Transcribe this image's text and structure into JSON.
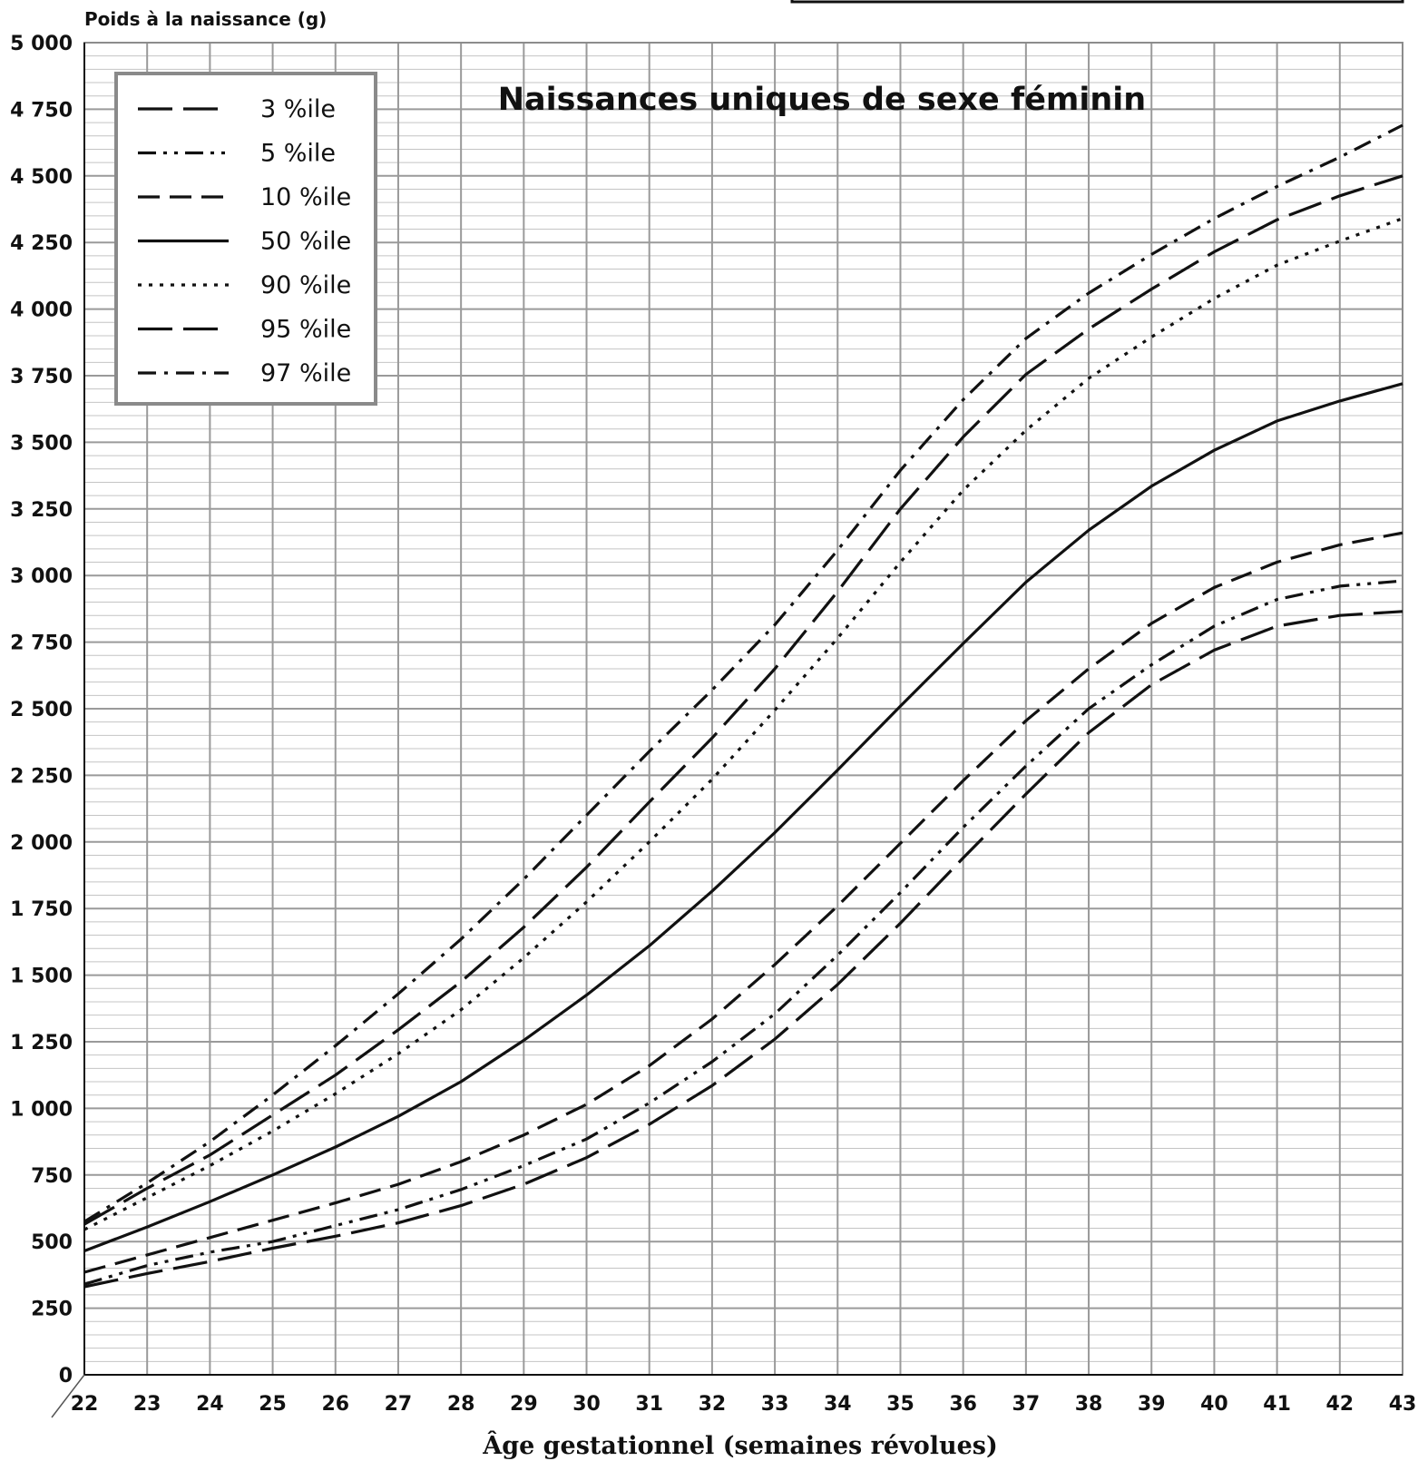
{
  "chart_data": {
    "type": "line",
    "title": "Naissances uniques de sexe féminin",
    "ylabel": "Poids à la naissance (g)",
    "xlabel": "Âge gestationnel (semaines révolues)",
    "xlim": [
      22,
      43
    ],
    "ylim": [
      0,
      5000
    ],
    "x_ticks": [
      22,
      23,
      24,
      25,
      26,
      27,
      28,
      29,
      30,
      31,
      32,
      33,
      34,
      35,
      36,
      37,
      38,
      39,
      40,
      41,
      42,
      43
    ],
    "x_tick_labels": [
      "22",
      "23",
      "24",
      "25",
      "26",
      "27",
      "28",
      "29",
      "30",
      "31",
      "32",
      "33",
      "34",
      "35",
      "36",
      "37",
      "38",
      "39",
      "40",
      "41",
      "42",
      "43"
    ],
    "y_ticks": [
      0,
      250,
      500,
      750,
      1000,
      1250,
      1500,
      1750,
      2000,
      2250,
      2500,
      2750,
      3000,
      3250,
      3500,
      3750,
      4000,
      4250,
      4500,
      4750,
      5000
    ],
    "y_tick_labels": [
      "0",
      "250",
      "500",
      "750",
      "1 000",
      "1 250",
      "1 500",
      "1 750",
      "2 000",
      "2 250",
      "2 500",
      "2 750",
      "3 000",
      "3 250",
      "3 500",
      "3 750",
      "4 000",
      "4 250",
      "4 500",
      "4 750",
      "5 000"
    ],
    "grid": true,
    "legend_position": "top-left",
    "x": [
      22,
      23,
      24,
      25,
      26,
      27,
      28,
      29,
      30,
      31,
      32,
      33,
      34,
      35,
      36,
      37,
      38,
      39,
      40,
      41,
      42,
      43
    ],
    "series": [
      {
        "name": "3 %ile",
        "style": "long-dash",
        "values": [
          330,
          380,
          425,
          475,
          520,
          570,
          635,
          715,
          815,
          940,
          1085,
          1260,
          1465,
          1695,
          1940,
          2180,
          2410,
          2590,
          2720,
          2810,
          2850,
          2865
        ]
      },
      {
        "name": "5 %ile",
        "style": "dash-dot-dot",
        "values": [
          340,
          410,
          460,
          500,
          560,
          620,
          695,
          785,
          885,
          1020,
          1175,
          1355,
          1575,
          1810,
          2055,
          2285,
          2500,
          2665,
          2810,
          2910,
          2960,
          2980
        ]
      },
      {
        "name": "10 %ile",
        "style": "dash",
        "values": [
          385,
          450,
          515,
          580,
          645,
          715,
          800,
          900,
          1015,
          1160,
          1335,
          1540,
          1760,
          1995,
          2230,
          2455,
          2650,
          2820,
          2955,
          3050,
          3115,
          3160
        ]
      },
      {
        "name": "50 %ile",
        "style": "solid",
        "values": [
          465,
          555,
          650,
          750,
          855,
          970,
          1100,
          1255,
          1425,
          1610,
          1815,
          2035,
          2270,
          2510,
          2745,
          2975,
          3170,
          3335,
          3470,
          3580,
          3655,
          3720
        ]
      },
      {
        "name": "90 %ile",
        "style": "dotted",
        "values": [
          545,
          665,
          785,
          915,
          1055,
          1205,
          1370,
          1565,
          1775,
          2000,
          2235,
          2495,
          2765,
          3050,
          3320,
          3545,
          3740,
          3895,
          4040,
          4165,
          4255,
          4340
        ]
      },
      {
        "name": "95 %ile",
        "style": "long-dash",
        "values": [
          565,
          700,
          825,
          975,
          1125,
          1295,
          1475,
          1680,
          1905,
          2150,
          2390,
          2650,
          2940,
          3250,
          3520,
          3755,
          3925,
          4075,
          4215,
          4335,
          4425,
          4500
        ]
      },
      {
        "name": "97 %ile",
        "style": "dash-dot",
        "values": [
          575,
          720,
          875,
          1050,
          1235,
          1430,
          1635,
          1860,
          2100,
          2340,
          2570,
          2815,
          3095,
          3395,
          3660,
          3890,
          4060,
          4205,
          4340,
          4460,
          4570,
          4690
        ]
      }
    ]
  },
  "colors": {
    "background": "#ffffff",
    "major_grid": "#9a9a9a",
    "minor_grid": "#c4c4c4",
    "line": "#111111",
    "legend_border": "#8a8a8a"
  }
}
